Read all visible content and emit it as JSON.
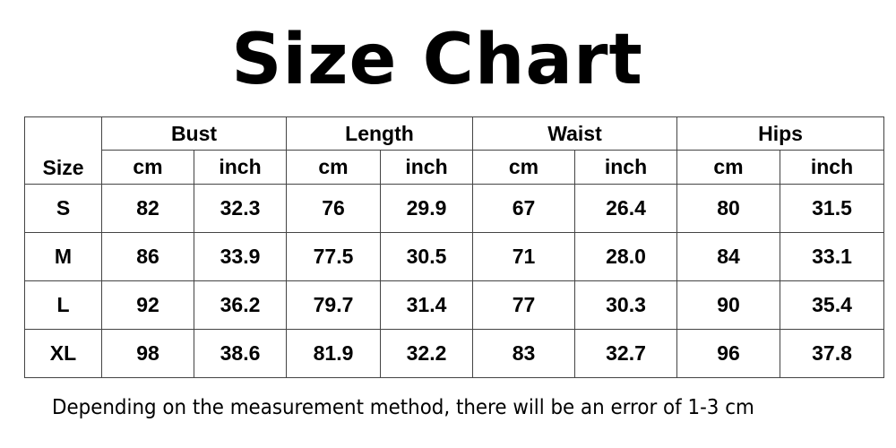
{
  "title": "Size Chart",
  "table": {
    "size_header": "Size",
    "groups": [
      "Bust",
      "Length",
      "Waist",
      "Hips"
    ],
    "units": [
      "cm",
      "inch"
    ],
    "rows": [
      {
        "size": "S",
        "values": [
          "82",
          "32.3",
          "76",
          "29.9",
          "67",
          "26.4",
          "80",
          "31.5"
        ]
      },
      {
        "size": "M",
        "values": [
          "86",
          "33.9",
          "77.5",
          "30.5",
          "71",
          "28.0",
          "84",
          "33.1"
        ]
      },
      {
        "size": "L",
        "values": [
          "92",
          "36.2",
          "79.7",
          "31.4",
          "77",
          "30.3",
          "90",
          "35.4"
        ]
      },
      {
        "size": "XL",
        "values": [
          "98",
          "38.6",
          "81.9",
          "32.2",
          "83",
          "32.7",
          "96",
          "37.8"
        ]
      }
    ]
  },
  "note": "Depending on the measurement method, there will be an error of 1-3 cm"
}
